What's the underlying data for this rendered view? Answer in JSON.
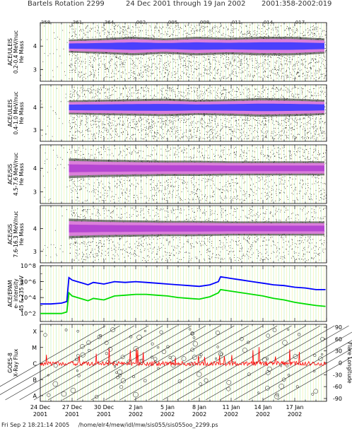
{
  "title": {
    "rotation": "Bartels Rotation 2299",
    "range": "24 Dec 2001 through 19 Jan 2002",
    "doy_range": "2001:358-2002:019"
  },
  "top_ticks": [
    "358",
    "361",
    "364",
    "002",
    "005",
    "008",
    "011",
    "014",
    "017"
  ],
  "bottom_ticks": [
    {
      "day": "24 Dec",
      "year": "2001"
    },
    {
      "day": "27 Dec",
      "year": "2001"
    },
    {
      "day": "30 Dec",
      "year": "2001"
    },
    {
      "day": "2 Jan",
      "year": "2002"
    },
    {
      "day": "5 Jan",
      "year": "2002"
    },
    {
      "day": "8 Jan",
      "year": "2002"
    },
    {
      "day": "11 Jan",
      "year": "2002"
    },
    {
      "day": "14 Jan",
      "year": "2002"
    },
    {
      "day": "17 Jan",
      "year": "2002"
    }
  ],
  "footer": {
    "timestamp": "Fri Sep  2 18:21:14 2005",
    "path": "/home/elr4/mew/idl/mw/sis055/sis055oo_2299.ps"
  },
  "colors": {
    "blue_core": "#3a3aff",
    "pink_halo": "#e080e0",
    "magenta_core": "#b040d0",
    "epam_blue": "#0000ff",
    "epam_green": "#00dd00",
    "xray_red": "#ff0000",
    "grid_green": "#b7f0b0",
    "grid_yellow": "#f0f0a0"
  },
  "chart_data": [
    {
      "type": "scatter",
      "ylabel": "ACE/ULEIS 0.2-0.4 MeV/nuc",
      "ylabel2": "He Mass",
      "yticks": [
        "4",
        "3"
      ],
      "band_center_mass": 4.0,
      "band_start_day": 2.7,
      "band_width": [
        0.4,
        0.6,
        0.9,
        0.6,
        0.9,
        0.7,
        0.9,
        0.9,
        0.6
      ]
    },
    {
      "type": "scatter",
      "ylabel": "ACE/ULEIS 0.4-1.0 MeV/nuc",
      "ylabel2": "He Mass",
      "yticks": [
        "4",
        "3"
      ],
      "band_center_mass": 4.0,
      "band_start_day": 2.7,
      "band_width": [
        0.5,
        0.6,
        0.7,
        0.8,
        0.6,
        0.7,
        0.9,
        0.8,
        0.6
      ]
    },
    {
      "type": "scatter",
      "ylabel": "ACE/SIS 4.5-7.6 MeV/nuc",
      "ylabel2": "He Mass",
      "yticks": [
        "4",
        "3"
      ],
      "band_center_mass": 4.0,
      "band_start_day": 2.7,
      "band_width": [
        1.0,
        0.8,
        0.7,
        0.6,
        0.6,
        0.5,
        0.5,
        0.5,
        0.5
      ]
    },
    {
      "type": "scatter",
      "ylabel": "ACE/SIS 7.6-16.3 MeV/nuc",
      "ylabel2": "He Mass",
      "yticks": [
        "4",
        "3"
      ],
      "band_center_mass": 4.0,
      "band_start_day": 2.7,
      "band_width": [
        1.0,
        0.8,
        0.7,
        0.6,
        0.6,
        0.5,
        0.5,
        0.5,
        0.5
      ]
    },
    {
      "type": "line",
      "ylabel": "ACE/EPAM e- intensity",
      "ylabel2": "45 & 235 keV",
      "yticks": [
        "10^8",
        "10^6",
        "10^4",
        "10^2"
      ],
      "ylog": [
        1,
        8
      ],
      "x_days": [
        0,
        1,
        2,
        2.5,
        2.7,
        3.0,
        3.5,
        4.0,
        4.5,
        5.0,
        6.0,
        7.0,
        8.0,
        9.0,
        10.0,
        11.0,
        12.0,
        13.0,
        14.0,
        15.0,
        16.0,
        16.8,
        17.0,
        17.5,
        18.0,
        19.0,
        20.0,
        21.0,
        22.0,
        23.0,
        24.0,
        25.0,
        26.0,
        26.9
      ],
      "series": [
        {
          "color": "#0000ff",
          "values": [
            3.2,
            3.2,
            3.3,
            3.5,
            6.5,
            6.2,
            6.0,
            5.8,
            5.6,
            5.9,
            5.7,
            6.0,
            5.9,
            6.0,
            5.9,
            5.8,
            5.7,
            5.6,
            5.5,
            5.4,
            5.6,
            6.0,
            6.6,
            6.5,
            6.4,
            6.2,
            6.0,
            5.8,
            5.6,
            5.5,
            5.3,
            5.2,
            5.0,
            5.0
          ]
        },
        {
          "color": "#00dd00",
          "values": [
            2.0,
            2.0,
            2.0,
            2.2,
            4.6,
            4.2,
            4.0,
            3.8,
            3.6,
            3.9,
            3.7,
            4.2,
            4.3,
            4.4,
            4.4,
            4.3,
            4.2,
            4.0,
            3.9,
            3.8,
            4.1,
            4.6,
            5.0,
            4.9,
            4.8,
            4.6,
            4.4,
            4.2,
            3.9,
            3.7,
            3.4,
            3.2,
            3.0,
            2.9
          ]
        }
      ]
    },
    {
      "type": "line",
      "ylabel": "GOES-8 X-Ray Flux",
      "ylabel2": "",
      "ylabel_right": "Flare Longitude",
      "yticks_left": [
        "X",
        "M",
        "C",
        "B",
        "A"
      ],
      "yticks_right": [
        "90",
        "60",
        "30",
        "0",
        "-30",
        "-60",
        "-90"
      ],
      "baseline_class": "C",
      "series": [
        {
          "color": "#ff0000",
          "name": ""
        }
      ]
    }
  ]
}
